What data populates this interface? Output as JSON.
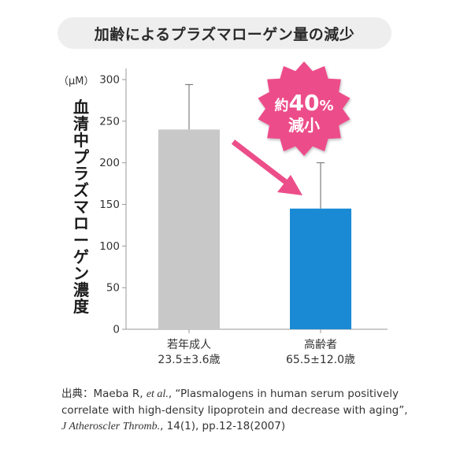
{
  "title": "加齢によるプラズマローゲン量の減少",
  "chart_data": {
    "type": "bar",
    "unit_label": "（μM）",
    "ylabel": "血清中プラズマローゲン濃度",
    "ylim": [
      0,
      300
    ],
    "yticks": [
      0,
      50,
      100,
      150,
      200,
      250,
      300
    ],
    "categories": [
      {
        "name": "若年成人",
        "age": "23.5±3.6歳"
      },
      {
        "name": "高齢者",
        "age": "65.5±12.0歳"
      }
    ],
    "values": [
      240,
      145
    ],
    "error_upper": [
      294,
      200
    ],
    "colors": [
      "#c8c8c8",
      "#1a8ad4"
    ],
    "annotation": {
      "line1_prefix": "約",
      "line1_number": "40",
      "line1_suffix": "%",
      "line2": "減小",
      "color": "#ec4e8a"
    },
    "grid": false
  },
  "citation": {
    "prefix": "出典：Maeba R, ",
    "etal": "et al.",
    "text1": ", “Plasmalogens in human serum positively correlate with high-density lipoprotein and decrease with aging”, ",
    "journal": "J Atheroscler Thromb.",
    "text2": ", 14(1), pp.12-18(2007)"
  }
}
